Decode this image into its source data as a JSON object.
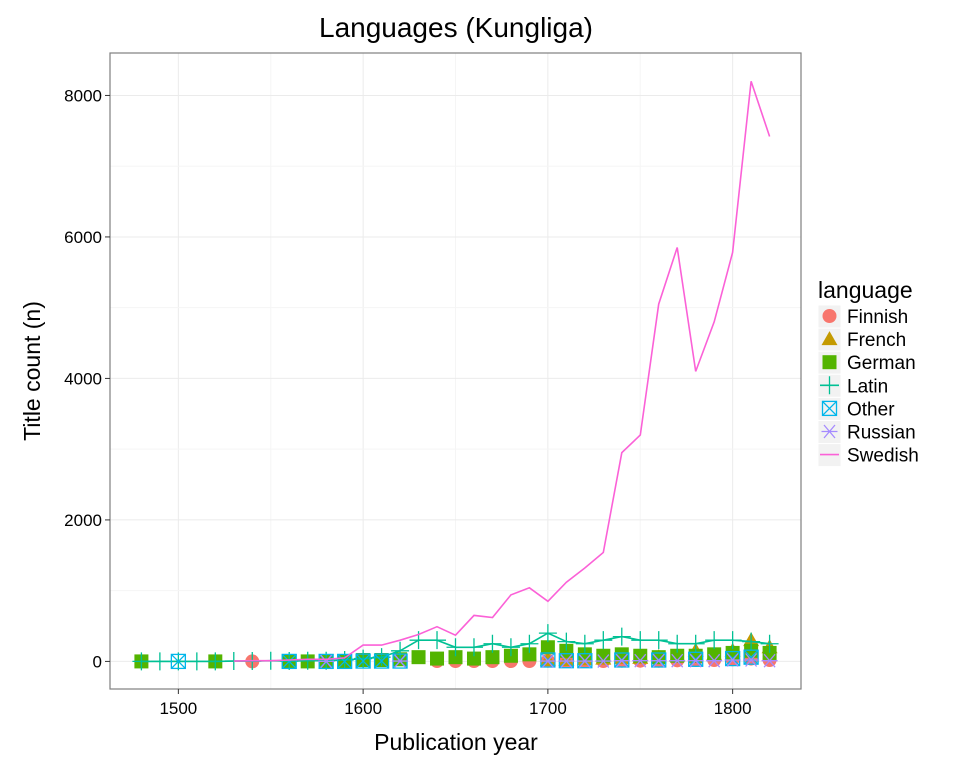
{
  "chart_data": {
    "type": "line",
    "title": "Languages (Kungliga)",
    "xlabel": "Publication year",
    "ylabel": "Title count (n)",
    "xlim": [
      1463,
      1837
    ],
    "ylim": [
      -390,
      8600
    ],
    "xticks": [
      1500,
      1600,
      1700,
      1800
    ],
    "yticks": [
      0,
      2000,
      4000,
      6000,
      8000
    ],
    "grid": true,
    "legend": {
      "title": "language",
      "placement": "right"
    },
    "series": [
      {
        "name": "Finnish",
        "color": "#F8766D",
        "marker": "circle",
        "line": false,
        "x": [
          1540,
          1640,
          1650,
          1660,
          1670,
          1680,
          1690,
          1700,
          1710,
          1720,
          1730,
          1740,
          1750,
          1760,
          1770,
          1780,
          1790,
          1800,
          1810,
          1820
        ],
        "y": [
          0,
          5,
          5,
          5,
          5,
          5,
          5,
          10,
          5,
          5,
          5,
          10,
          10,
          10,
          15,
          20,
          20,
          30,
          40,
          20
        ]
      },
      {
        "name": "French",
        "color": "#C49A00",
        "marker": "triangle",
        "line": false,
        "x": [
          1700,
          1710,
          1720,
          1730,
          1740,
          1750,
          1760,
          1770,
          1780,
          1790,
          1800,
          1810,
          1820
        ],
        "y": [
          20,
          20,
          30,
          40,
          50,
          50,
          60,
          80,
          150,
          100,
          150,
          300,
          200
        ]
      },
      {
        "name": "German",
        "color": "#53B400",
        "marker": "square",
        "line": false,
        "x": [
          1480,
          1520,
          1560,
          1570,
          1580,
          1590,
          1600,
          1610,
          1620,
          1630,
          1640,
          1650,
          1660,
          1670,
          1680,
          1690,
          1700,
          1710,
          1720,
          1730,
          1740,
          1750,
          1760,
          1770,
          1780,
          1790,
          1800,
          1810,
          1820
        ],
        "y": [
          0,
          0,
          0,
          0,
          0,
          5,
          20,
          20,
          30,
          60,
          40,
          60,
          40,
          60,
          80,
          100,
          200,
          150,
          100,
          80,
          100,
          80,
          60,
          80,
          80,
          100,
          120,
          150,
          120
        ]
      },
      {
        "name": "Latin",
        "color": "#00C094",
        "marker": "plus",
        "line": true,
        "x": [
          1480,
          1490,
          1500,
          1510,
          1520,
          1530,
          1540,
          1550,
          1560,
          1570,
          1580,
          1590,
          1600,
          1610,
          1620,
          1630,
          1640,
          1650,
          1660,
          1670,
          1680,
          1690,
          1700,
          1710,
          1720,
          1730,
          1740,
          1750,
          1760,
          1770,
          1780,
          1790,
          1800,
          1810,
          1820
        ],
        "y": [
          0,
          0,
          0,
          0,
          0,
          5,
          5,
          10,
          5,
          10,
          10,
          20,
          40,
          60,
          150,
          300,
          300,
          200,
          200,
          250,
          200,
          250,
          400,
          280,
          250,
          300,
          350,
          300,
          300,
          250,
          250,
          300,
          300,
          280,
          250
        ]
      },
      {
        "name": "Other",
        "color": "#00B6EB",
        "marker": "square-x",
        "line": false,
        "x": [
          1500,
          1560,
          1580,
          1590,
          1600,
          1610,
          1620,
          1700,
          1710,
          1720,
          1740,
          1760,
          1780,
          1800,
          1810
        ],
        "y": [
          0,
          0,
          0,
          0,
          5,
          5,
          5,
          20,
          10,
          10,
          20,
          20,
          30,
          40,
          60
        ]
      },
      {
        "name": "Russian",
        "color": "#A58AFF",
        "marker": "asterisk",
        "line": false,
        "x": [
          1580,
          1620,
          1700,
          1710,
          1720,
          1730,
          1740,
          1750,
          1760,
          1770,
          1780,
          1790,
          1800,
          1810,
          1820
        ],
        "y": [
          0,
          5,
          5,
          5,
          5,
          5,
          10,
          10,
          10,
          10,
          10,
          10,
          20,
          20,
          10
        ]
      },
      {
        "name": "Swedish",
        "color": "#FB61D7",
        "marker": "line",
        "line": true,
        "x": [
          1530,
          1540,
          1550,
          1560,
          1570,
          1580,
          1590,
          1600,
          1610,
          1620,
          1630,
          1640,
          1650,
          1660,
          1670,
          1680,
          1690,
          1700,
          1710,
          1720,
          1730,
          1740,
          1750,
          1760,
          1770,
          1780,
          1790,
          1800,
          1810,
          1820
        ],
        "y": [
          5,
          10,
          10,
          20,
          30,
          30,
          50,
          230,
          230,
          300,
          380,
          490,
          370,
          650,
          620,
          940,
          1040,
          850,
          1120,
          1320,
          1540,
          2950,
          3200,
          5050,
          5850,
          4100,
          4800,
          5780,
          8200,
          7420
        ]
      }
    ]
  }
}
